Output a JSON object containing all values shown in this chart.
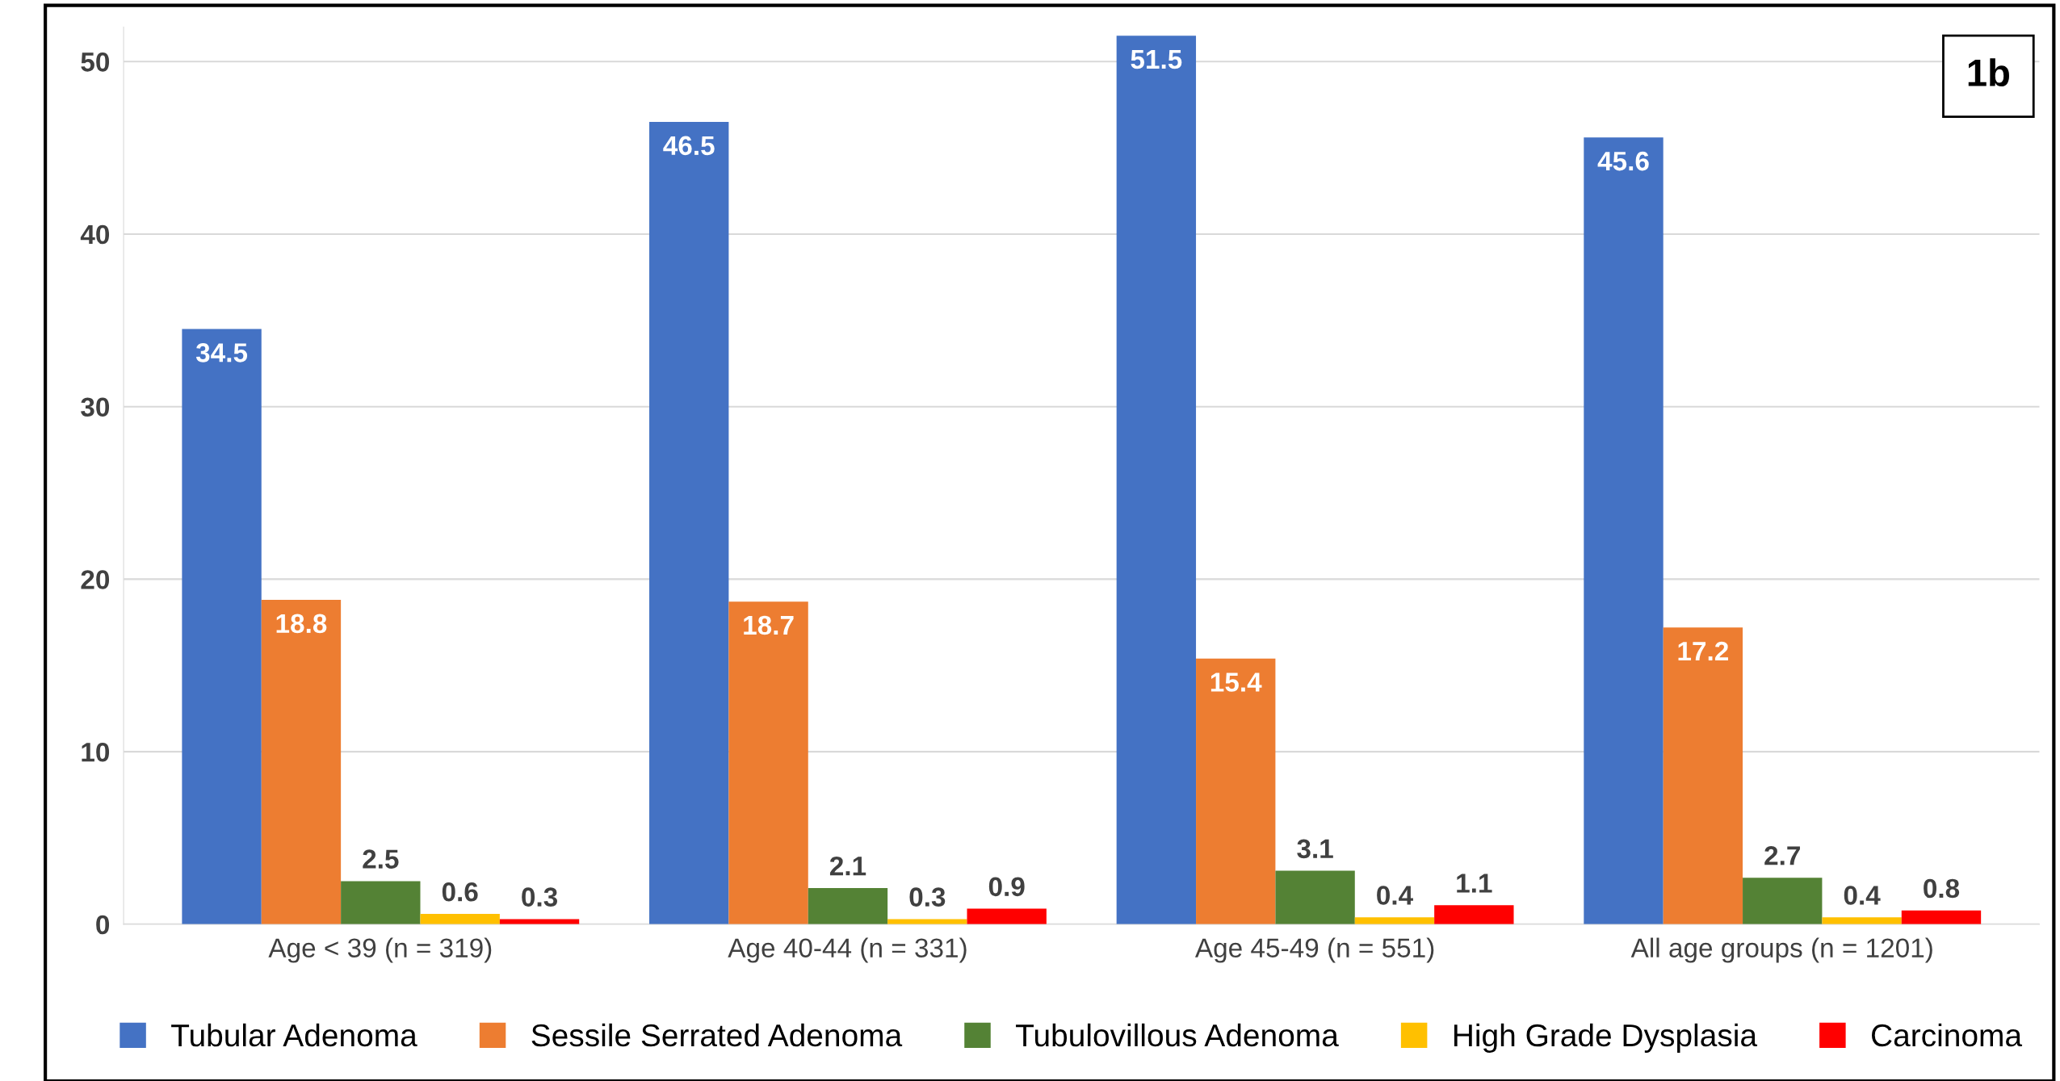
{
  "chart_data": {
    "type": "bar",
    "categories": [
      "Age < 39 (n = 319)",
      "Age 40-44 (n = 331)",
      "Age 45-49 (n = 551)",
      "All age groups (n = 1201)"
    ],
    "series": [
      {
        "name": "Tubular Adenoma",
        "color": "#4472c4",
        "values": [
          34.5,
          46.5,
          51.5,
          45.6
        ]
      },
      {
        "name": "Sessile Serrated Adenoma",
        "color": "#ed7d31",
        "values": [
          18.8,
          18.7,
          15.4,
          17.2
        ]
      },
      {
        "name": "Tubulovillous Adenoma",
        "color": "#548235",
        "values": [
          2.5,
          2.1,
          3.1,
          2.7
        ]
      },
      {
        "name": "High Grade Dysplasia",
        "color": "#ffc000",
        "values": [
          0.6,
          0.3,
          0.4,
          0.4
        ]
      },
      {
        "name": "Carcinoma",
        "color": "#ff0000",
        "values": [
          0.3,
          0.9,
          1.1,
          0.8
        ]
      }
    ],
    "ylim": [
      0,
      52
    ],
    "yticks": [
      0,
      10,
      20,
      30,
      40,
      50
    ],
    "grid": "y",
    "legend": "bottom",
    "data_labels": true,
    "annotations": [
      "1b"
    ]
  }
}
